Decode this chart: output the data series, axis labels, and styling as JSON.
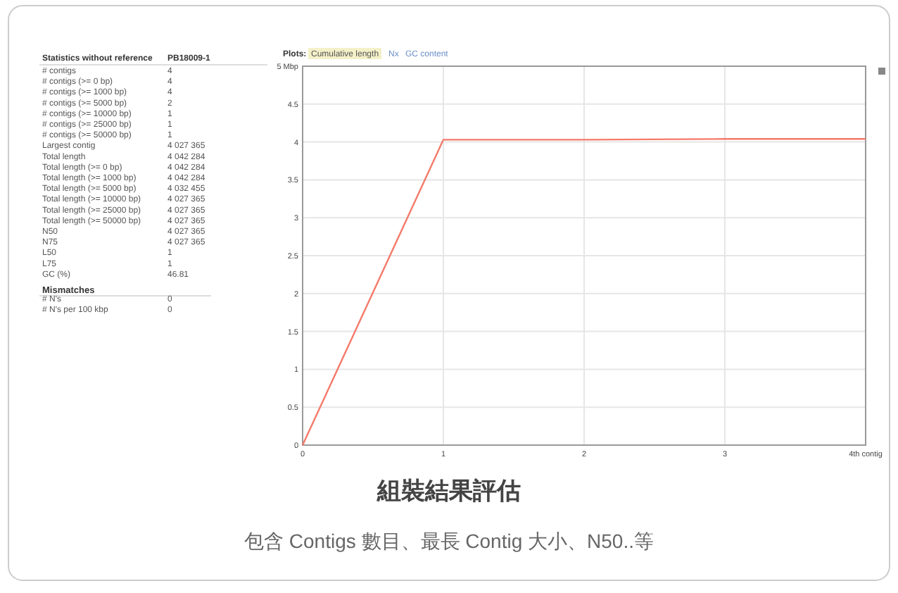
{
  "chart_data": [
    {
      "type": "other",
      "title": "Statistics without reference",
      "subtitle": "PB18009-1",
      "annotations": [
        "# contigs",
        "4",
        "# contigs (>= 0 bp)",
        "4",
        "# contigs (>= 1000 bp)",
        "4",
        "# contigs (>= 5000 bp)",
        "2",
        "# contigs (>= 10000 bp)",
        "1",
        "# contigs (>= 25000 bp)",
        "1",
        "# contigs (>= 50000 bp)",
        "1",
        "Largest contig",
        "4 027 365",
        "Total length",
        "4 042 284",
        "Total length (>= 0 bp)",
        "4 042 284",
        "Total length (>= 1000 bp)",
        "4 042 284",
        "Total length (>= 5000 bp)",
        "4 032 455",
        "Total length (>= 10000 bp)",
        "4 027 365",
        "Total length (>= 25000 bp)",
        "4 027 365",
        "Total length (>= 50000 bp)",
        "4 027 365",
        "N50",
        "4 027 365",
        "N75",
        "4 027 365",
        "L50",
        "1",
        "L75",
        "1",
        "GC (%)",
        "46.81",
        "Mismatches",
        "# N's",
        "0",
        "# N's per 100 kbp",
        "0"
      ]
    },
    {
      "type": "line",
      "title": "組裝結果評估",
      "subtitle": "包含 Contigs 數目、最長 Contig 大小、N50..等",
      "annotations": [
        "Plots:",
        "Cumulative length",
        "Nx",
        "GC content"
      ],
      "x": [
        0,
        1,
        2,
        3,
        4
      ],
      "series": [
        {
          "color": "#f47a6a",
          "values": [
            0,
            4.03,
            4.03,
            4.04,
            4.04
          ]
        }
      ],
      "xlim": [
        0,
        4
      ],
      "xticks": [
        0,
        1,
        2,
        3,
        {
          "value": 4,
          "label": "4th contig"
        }
      ],
      "ylim": [
        0,
        5
      ],
      "yticks": [
        0,
        0.5,
        1,
        1.5,
        2,
        2.5,
        3,
        3.5,
        4,
        4.5,
        {
          "value": 5,
          "label": "5 Mbp"
        }
      ],
      "grid": true,
      "marker": "none",
      "line_style": "solid"
    }
  ]
}
